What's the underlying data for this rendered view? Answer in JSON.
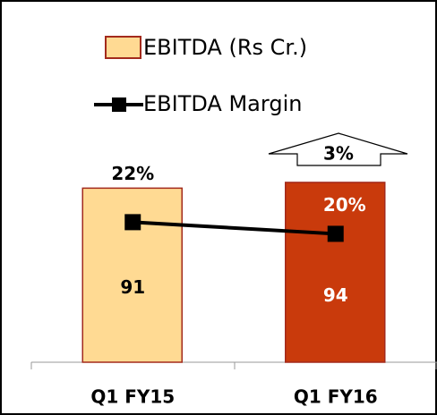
{
  "chart_data": {
    "type": "bar_line",
    "categories": [
      "Q1 FY15",
      "Q1 FY16"
    ],
    "series": [
      {
        "name": "EBITDA (Rs Cr.)",
        "type": "bar",
        "colors": [
          "#FFDA93",
          "#C93A0C"
        ],
        "edge_color": "#A32A1C",
        "label_colors": [
          "#000000",
          "#FFFFFF"
        ],
        "values": [
          91,
          94
        ]
      },
      {
        "name": "EBITDA Margin",
        "type": "line",
        "axis": "y2",
        "color": "#000000",
        "label_colors": [
          "#000000",
          "#FFFFFF"
        ],
        "values": [
          22,
          20
        ],
        "value_labels": [
          "22%",
          "20%"
        ]
      }
    ],
    "annotation": "3%",
    "ylim": [
      0,
      180
    ],
    "y2lim": [
      -2,
      57
    ],
    "legend": "top"
  }
}
